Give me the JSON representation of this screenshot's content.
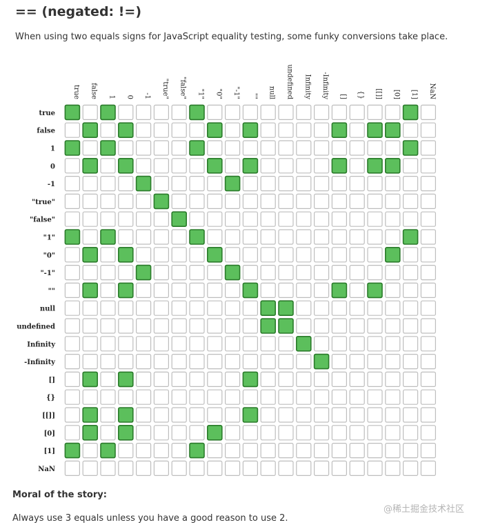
{
  "header": {
    "title": "== (negated: !=)",
    "intro": "When using two equals signs for JavaScript equality testing, some funky conversions take place."
  },
  "chart_data": {
    "type": "heatmap",
    "title": "",
    "labels": [
      "true",
      "false",
      "1",
      "0",
      "-1",
      "\"true\"",
      "\"false\"",
      "\"1\"",
      "\"0\"",
      "\"-1\"",
      "\"\"",
      "null",
      "undefined",
      "Infinity",
      "-Infinity",
      "[]",
      "{}",
      "[[]]",
      "[0]",
      "[1]",
      "NaN"
    ],
    "legend": "none",
    "colors": {
      "equal_fill": "#5cbf5c",
      "equal_border": "#2a7a2a",
      "empty_fill": "#ffffff",
      "empty_border": "#bdbdbd"
    },
    "matrix": [
      [
        1,
        0,
        1,
        0,
        0,
        0,
        0,
        1,
        0,
        0,
        0,
        0,
        0,
        0,
        0,
        0,
        0,
        0,
        0,
        1,
        0
      ],
      [
        0,
        1,
        0,
        1,
        0,
        0,
        0,
        0,
        1,
        0,
        1,
        0,
        0,
        0,
        0,
        1,
        0,
        1,
        1,
        0,
        0
      ],
      [
        1,
        0,
        1,
        0,
        0,
        0,
        0,
        1,
        0,
        0,
        0,
        0,
        0,
        0,
        0,
        0,
        0,
        0,
        0,
        1,
        0
      ],
      [
        0,
        1,
        0,
        1,
        0,
        0,
        0,
        0,
        1,
        0,
        1,
        0,
        0,
        0,
        0,
        1,
        0,
        1,
        1,
        0,
        0
      ],
      [
        0,
        0,
        0,
        0,
        1,
        0,
        0,
        0,
        0,
        1,
        0,
        0,
        0,
        0,
        0,
        0,
        0,
        0,
        0,
        0,
        0
      ],
      [
        0,
        0,
        0,
        0,
        0,
        1,
        0,
        0,
        0,
        0,
        0,
        0,
        0,
        0,
        0,
        0,
        0,
        0,
        0,
        0,
        0
      ],
      [
        0,
        0,
        0,
        0,
        0,
        0,
        1,
        0,
        0,
        0,
        0,
        0,
        0,
        0,
        0,
        0,
        0,
        0,
        0,
        0,
        0
      ],
      [
        1,
        0,
        1,
        0,
        0,
        0,
        0,
        1,
        0,
        0,
        0,
        0,
        0,
        0,
        0,
        0,
        0,
        0,
        0,
        1,
        0
      ],
      [
        0,
        1,
        0,
        1,
        0,
        0,
        0,
        0,
        1,
        0,
        0,
        0,
        0,
        0,
        0,
        0,
        0,
        0,
        1,
        0,
        0
      ],
      [
        0,
        0,
        0,
        0,
        1,
        0,
        0,
        0,
        0,
        1,
        0,
        0,
        0,
        0,
        0,
        0,
        0,
        0,
        0,
        0,
        0
      ],
      [
        0,
        1,
        0,
        1,
        0,
        0,
        0,
        0,
        0,
        0,
        1,
        0,
        0,
        0,
        0,
        1,
        0,
        1,
        0,
        0,
        0
      ],
      [
        0,
        0,
        0,
        0,
        0,
        0,
        0,
        0,
        0,
        0,
        0,
        1,
        1,
        0,
        0,
        0,
        0,
        0,
        0,
        0,
        0
      ],
      [
        0,
        0,
        0,
        0,
        0,
        0,
        0,
        0,
        0,
        0,
        0,
        1,
        1,
        0,
        0,
        0,
        0,
        0,
        0,
        0,
        0
      ],
      [
        0,
        0,
        0,
        0,
        0,
        0,
        0,
        0,
        0,
        0,
        0,
        0,
        0,
        1,
        0,
        0,
        0,
        0,
        0,
        0,
        0
      ],
      [
        0,
        0,
        0,
        0,
        0,
        0,
        0,
        0,
        0,
        0,
        0,
        0,
        0,
        0,
        1,
        0,
        0,
        0,
        0,
        0,
        0
      ],
      [
        0,
        1,
        0,
        1,
        0,
        0,
        0,
        0,
        0,
        0,
        1,
        0,
        0,
        0,
        0,
        0,
        0,
        0,
        0,
        0,
        0
      ],
      [
        0,
        0,
        0,
        0,
        0,
        0,
        0,
        0,
        0,
        0,
        0,
        0,
        0,
        0,
        0,
        0,
        0,
        0,
        0,
        0,
        0
      ],
      [
        0,
        1,
        0,
        1,
        0,
        0,
        0,
        0,
        0,
        0,
        1,
        0,
        0,
        0,
        0,
        0,
        0,
        0,
        0,
        0,
        0
      ],
      [
        0,
        1,
        0,
        1,
        0,
        0,
        0,
        0,
        1,
        0,
        0,
        0,
        0,
        0,
        0,
        0,
        0,
        0,
        0,
        0,
        0
      ],
      [
        1,
        0,
        1,
        0,
        0,
        0,
        0,
        1,
        0,
        0,
        0,
        0,
        0,
        0,
        0,
        0,
        0,
        0,
        0,
        0,
        0
      ],
      [
        0,
        0,
        0,
        0,
        0,
        0,
        0,
        0,
        0,
        0,
        0,
        0,
        0,
        0,
        0,
        0,
        0,
        0,
        0,
        0,
        0
      ]
    ]
  },
  "footer": {
    "moral_heading": "Moral of the story:",
    "moral_text": "Always use 3 equals unless you have a good reason to use 2.",
    "watermark": "@稀土掘金技术社区"
  }
}
